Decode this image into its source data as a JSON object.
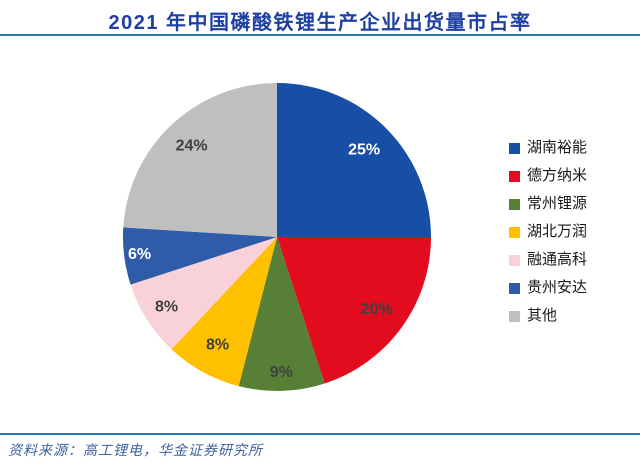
{
  "header": {
    "title": "2021 年中国磷酸铁锂生产企业出货量市占率"
  },
  "footer": {
    "source_note": "资料来源：高工锂电，华金证券研究所"
  },
  "colors": {
    "title_text": "#1d3fa2",
    "divider_rule": "#2d78ab",
    "source_text": "#3c639f",
    "legend_text": "#1a1a1a",
    "label_dark": "#404040",
    "label_light": "#ffffff"
  },
  "chart_data": {
    "type": "pie",
    "title": "2021 年中国磷酸铁锂生产企业出货量市占率",
    "start_angle_deg": 0,
    "direction": "clockwise",
    "legend_position": "right",
    "series": [
      {
        "name": "湖南裕能",
        "value": 25,
        "label": "25%",
        "color": "#174fa6",
        "label_color": "#ffffff"
      },
      {
        "name": "德方纳米",
        "value": 20,
        "label": "20%",
        "color": "#e30b1e",
        "label_color": "#404040"
      },
      {
        "name": "常州锂源",
        "value": 9,
        "label": "9%",
        "color": "#577f35",
        "label_color": "#404040"
      },
      {
        "name": "湖北万润",
        "value": 8,
        "label": "8%",
        "color": "#ffc000",
        "label_color": "#404040"
      },
      {
        "name": "融通高科",
        "value": 8,
        "label": "8%",
        "color": "#f8d2d8",
        "label_color": "#404040"
      },
      {
        "name": "贵州安达",
        "value": 6,
        "label": "6%",
        "color": "#2e5ca8",
        "label_color": "#ffffff"
      },
      {
        "name": "其他",
        "value": 24,
        "label": "24%",
        "color": "#bfbfbf",
        "label_color": "#404040"
      }
    ]
  }
}
